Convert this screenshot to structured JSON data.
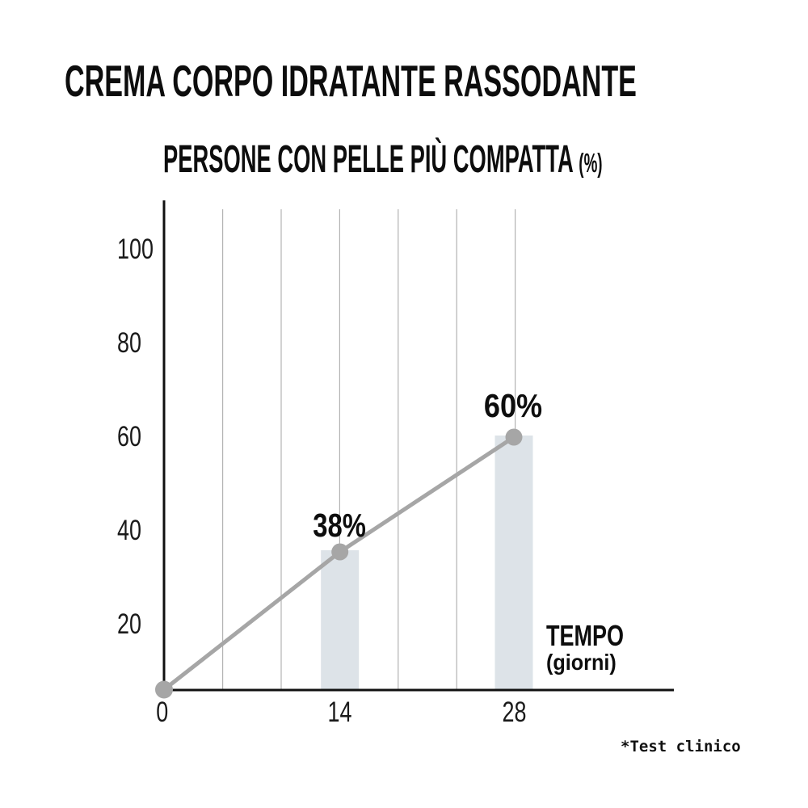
{
  "page": {
    "background": "#ffffff"
  },
  "header": {
    "title": "CREMA CORPO IDRATANTE RASSODANTE"
  },
  "chart_data": {
    "type": "line",
    "title": "PERSONE CON PELLE PIÙ COMPATTA",
    "title_unit": "(%)",
    "xlabel": "TEMPO",
    "xlabel_unit": "(giorni)",
    "x_unit": "giorni",
    "x_ticks": [
      "0",
      "14",
      "28"
    ],
    "y_ticks": [
      "100",
      "80",
      "60",
      "40",
      "20"
    ],
    "ylim": [
      0,
      110
    ],
    "grid": "vertical-only",
    "legend": "none",
    "series": [
      {
        "name": "Persone con pelle più compatta (%)",
        "x": [
          0,
          14,
          28
        ],
        "y": [
          0,
          38,
          60
        ]
      }
    ],
    "points": [
      {
        "day": "0",
        "value": 0,
        "label": "",
        "bar": false
      },
      {
        "day": "14",
        "value": 38,
        "label": "38%",
        "bar": true
      },
      {
        "day": "28",
        "value": 60,
        "label": "60%",
        "bar": true
      }
    ],
    "colors": {
      "line": "#a6a6a6",
      "dot": "#a6a6a6",
      "bar": "#dde3e8",
      "axis": "#111111",
      "grid": "#b3b3b3",
      "text": "#0d0d0d"
    }
  },
  "footnote": {
    "text": "*Test clinico"
  }
}
